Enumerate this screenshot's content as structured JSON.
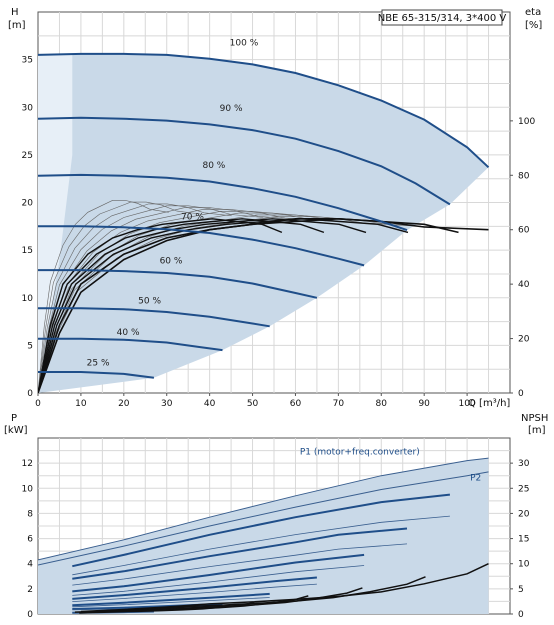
{
  "title_box": "NBE 65-315/314, 3*400 V",
  "chart_data": [
    {
      "type": "line",
      "id": "head_eta",
      "ylabel_left": "H",
      "yunit_left": "[m]",
      "ylabel_right": "eta",
      "yunit_right": "[%]",
      "xlabel": "Q [m³/h]",
      "xlim": [
        0,
        110
      ],
      "ylim_left": [
        0,
        40
      ],
      "ylim_right": [
        0,
        140
      ],
      "xticks": [
        "0",
        "10",
        "20",
        "30",
        "40",
        "50",
        "60",
        "70",
        "80",
        "90",
        "100"
      ],
      "yticks_left": [
        "0",
        "5",
        "10",
        "15",
        "20",
        "25",
        "30",
        "35"
      ],
      "yticks_right": [
        "0",
        "20",
        "40",
        "60",
        "80",
        "100"
      ],
      "grid": true,
      "series": [
        {
          "name": "100 %",
          "label_x": 48,
          "label_y": 36.5,
          "points": [
            [
              0,
              35.5
            ],
            [
              10,
              35.6
            ],
            [
              20,
              35.6
            ],
            [
              30,
              35.5
            ],
            [
              40,
              35.1
            ],
            [
              50,
              34.5
            ],
            [
              60,
              33.6
            ],
            [
              70,
              32.3
            ],
            [
              80,
              30.7
            ],
            [
              90,
              28.7
            ],
            [
              100,
              25.8
            ],
            [
              105,
              23.7
            ]
          ]
        },
        {
          "name": "90 %",
          "label_x": 45,
          "label_y": 29.6,
          "points": [
            [
              0,
              28.8
            ],
            [
              10,
              28.9
            ],
            [
              20,
              28.8
            ],
            [
              30,
              28.6
            ],
            [
              40,
              28.2
            ],
            [
              50,
              27.6
            ],
            [
              60,
              26.7
            ],
            [
              70,
              25.4
            ],
            [
              80,
              23.8
            ],
            [
              88,
              22.0
            ],
            [
              96,
              19.8
            ]
          ]
        },
        {
          "name": "80 %",
          "label_x": 41,
          "label_y": 23.6,
          "points": [
            [
              0,
              22.8
            ],
            [
              10,
              22.9
            ],
            [
              20,
              22.8
            ],
            [
              30,
              22.6
            ],
            [
              40,
              22.2
            ],
            [
              50,
              21.5
            ],
            [
              60,
              20.6
            ],
            [
              70,
              19.4
            ],
            [
              80,
              18.0
            ],
            [
              86,
              17.1
            ]
          ]
        },
        {
          "name": "70 %",
          "label_x": 36,
          "label_y": 18.2,
          "points": [
            [
              0,
              17.5
            ],
            [
              10,
              17.5
            ],
            [
              20,
              17.4
            ],
            [
              30,
              17.2
            ],
            [
              40,
              16.8
            ],
            [
              50,
              16.1
            ],
            [
              60,
              15.2
            ],
            [
              70,
              14.1
            ],
            [
              76,
              13.4
            ]
          ]
        },
        {
          "name": "60 %",
          "label_x": 31,
          "label_y": 13.6,
          "points": [
            [
              0,
              12.9
            ],
            [
              10,
              12.9
            ],
            [
              20,
              12.8
            ],
            [
              30,
              12.6
            ],
            [
              40,
              12.2
            ],
            [
              50,
              11.5
            ],
            [
              60,
              10.5
            ],
            [
              65,
              10.0
            ]
          ]
        },
        {
          "name": "50 %",
          "label_x": 26,
          "label_y": 9.4,
          "points": [
            [
              0,
              8.9
            ],
            [
              10,
              8.9
            ],
            [
              20,
              8.8
            ],
            [
              30,
              8.5
            ],
            [
              40,
              8.0
            ],
            [
              50,
              7.3
            ],
            [
              54,
              7.0
            ]
          ]
        },
        {
          "name": "40 %",
          "label_x": 21,
          "label_y": 6.1,
          "points": [
            [
              0,
              5.7
            ],
            [
              10,
              5.7
            ],
            [
              20,
              5.6
            ],
            [
              30,
              5.3
            ],
            [
              38,
              4.8
            ],
            [
              43,
              4.5
            ]
          ]
        },
        {
          "name": "25 %",
          "label_x": 14,
          "label_y": 2.9,
          "points": [
            [
              0,
              2.2
            ],
            [
              10,
              2.2
            ],
            [
              20,
              2.0
            ],
            [
              27,
              1.6
            ]
          ]
        }
      ],
      "eta_series": [
        {
          "name": "",
          "points": [
            [
              0,
              0
            ],
            [
              5,
              25
            ],
            [
              10,
              40
            ],
            [
              20,
              51
            ],
            [
              30,
              57
            ],
            [
              40,
              60
            ],
            [
              50,
              62
            ],
            [
              60,
              63
            ],
            [
              70,
              64
            ],
            [
              80,
              63
            ],
            [
              90,
              62
            ],
            [
              98,
              59
            ]
          ]
        },
        {
          "name": "",
          "points": [
            [
              0,
              0
            ],
            [
              5,
              22
            ],
            [
              10,
              37
            ],
            [
              20,
              49
            ],
            [
              30,
              56
            ],
            [
              40,
              60
            ],
            [
              50,
              62
            ],
            [
              60,
              64
            ],
            [
              70,
              64
            ],
            [
              80,
              63
            ],
            [
              90,
              61
            ],
            [
              105,
              60
            ]
          ]
        }
      ]
    },
    {
      "type": "line",
      "id": "power_npsh",
      "ylabel_left": "P",
      "yunit_left": "[kW]",
      "ylabel_right": "NPSH",
      "yunit_right": "[m]",
      "xlim": [
        0,
        110
      ],
      "ylim_left": [
        0,
        14
      ],
      "ylim_right": [
        0,
        35
      ],
      "yticks_left": [
        "0",
        "2",
        "4",
        "6",
        "8",
        "10",
        "12"
      ],
      "yticks_right": [
        "0",
        "5",
        "10",
        "15",
        "20",
        "25",
        "30"
      ],
      "grid": true,
      "annotations": [
        {
          "text": "P1 (motor+freq.converter)",
          "x": 75,
          "y": 12.7
        },
        {
          "text": "P2",
          "x": 102,
          "y": 10.6
        }
      ],
      "series": [
        {
          "name": "P1 (motor+freq.converter)",
          "points": [
            [
              0,
              4.3
            ],
            [
              20,
              5.9
            ],
            [
              40,
              7.7
            ],
            [
              60,
              9.4
            ],
            [
              80,
              11.0
            ],
            [
              100,
              12.2
            ],
            [
              105,
              12.4
            ]
          ]
        },
        {
          "name": "P2",
          "points": [
            [
              0,
              3.9
            ],
            [
              20,
              5.4
            ],
            [
              40,
              7.0
            ],
            [
              60,
              8.5
            ],
            [
              80,
              9.9
            ],
            [
              100,
              11.0
            ],
            [
              105,
              11.3
            ]
          ]
        },
        {
          "name": "",
          "points": [
            [
              8,
              3.8
            ],
            [
              20,
              4.7
            ],
            [
              40,
              6.3
            ],
            [
              60,
              7.7
            ],
            [
              80,
              8.9
            ],
            [
              96,
              9.5
            ]
          ]
        },
        {
          "name": "",
          "points": [
            [
              8,
              2.8
            ],
            [
              20,
              3.4
            ],
            [
              40,
              4.6
            ],
            [
              60,
              5.7
            ],
            [
              70,
              6.3
            ],
            [
              86,
              6.8
            ]
          ]
        },
        {
          "name": "",
          "points": [
            [
              8,
              1.8
            ],
            [
              20,
              2.2
            ],
            [
              40,
              3.1
            ],
            [
              60,
              4.1
            ],
            [
              76,
              4.7
            ]
          ]
        },
        {
          "name": "",
          "points": [
            [
              8,
              1.2
            ],
            [
              20,
              1.5
            ],
            [
              40,
              2.1
            ],
            [
              55,
              2.6
            ],
            [
              65,
              2.9
            ]
          ]
        },
        {
          "name": "",
          "points": [
            [
              8,
              0.7
            ],
            [
              20,
              0.9
            ],
            [
              40,
              1.3
            ],
            [
              54,
              1.6
            ]
          ]
        },
        {
          "name": "",
          "points": [
            [
              8,
              0.4
            ],
            [
              20,
              0.5
            ],
            [
              35,
              0.7
            ],
            [
              43,
              0.8
            ]
          ]
        },
        {
          "name": "",
          "points": [
            [
              8,
              0.1
            ],
            [
              20,
              0.15
            ],
            [
              27,
              0.2
            ]
          ]
        }
      ],
      "npsh_series": [
        {
          "name": "",
          "points": [
            [
              10,
              0.5
            ],
            [
              20,
              0.9
            ],
            [
              30,
              1.4
            ],
            [
              40,
              2.0
            ],
            [
              50,
              2.4
            ],
            [
              60,
              2.9
            ],
            [
              70,
              3.5
            ],
            [
              80,
              4.4
            ],
            [
              90,
              6.0
            ],
            [
              100,
              8.0
            ],
            [
              105,
              10.0
            ]
          ]
        }
      ]
    }
  ]
}
